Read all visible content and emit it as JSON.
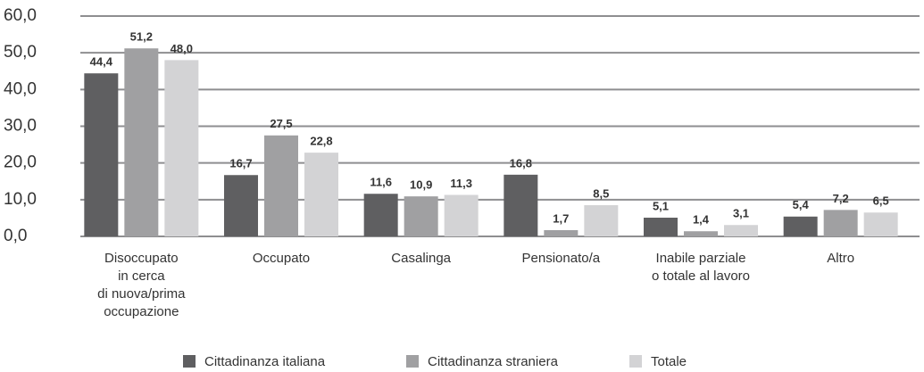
{
  "chart_data": {
    "type": "bar",
    "categories": [
      "Disoccupato\nin cerca\ndi nuova/prima\noccupazione",
      "Occupato",
      "Casalinga",
      "Pensionato/a",
      "Inabile parziale\no totale al lavoro",
      "Altro"
    ],
    "series": [
      {
        "name": "Cittadinanza italiana",
        "color": "#5f5f61",
        "values": [
          44.4,
          16.7,
          11.6,
          16.8,
          5.1,
          5.4
        ],
        "value_labels": [
          "44,4",
          "16,7",
          "11,6",
          "16,8",
          "5,1",
          "5,4"
        ]
      },
      {
        "name": "Cittadinanza straniera",
        "color": "#a0a0a2",
        "values": [
          51.2,
          27.5,
          10.9,
          1.7,
          1.4,
          7.2
        ],
        "value_labels": [
          "51,2",
          "27,5",
          "10,9",
          "1,7",
          "1,4",
          "7,2"
        ]
      },
      {
        "name": "Totale",
        "color": "#d3d3d5",
        "values": [
          48.0,
          22.8,
          11.3,
          8.5,
          3.1,
          6.5
        ],
        "value_labels": [
          "48,0",
          "22,8",
          "11,3",
          "8,5",
          "3,1",
          "6,5"
        ]
      }
    ],
    "ylim": [
      0,
      60
    ],
    "yticks": [
      {
        "value": 0,
        "label": "0,0"
      },
      {
        "value": 10,
        "label": "10,0"
      },
      {
        "value": 20,
        "label": "20,0"
      },
      {
        "value": 30,
        "label": "30,0"
      },
      {
        "value": 40,
        "label": "40,0"
      },
      {
        "value": 50,
        "label": "50,0"
      },
      {
        "value": 60,
        "label": "60,0"
      }
    ],
    "grid": true,
    "legend": "bottom"
  }
}
